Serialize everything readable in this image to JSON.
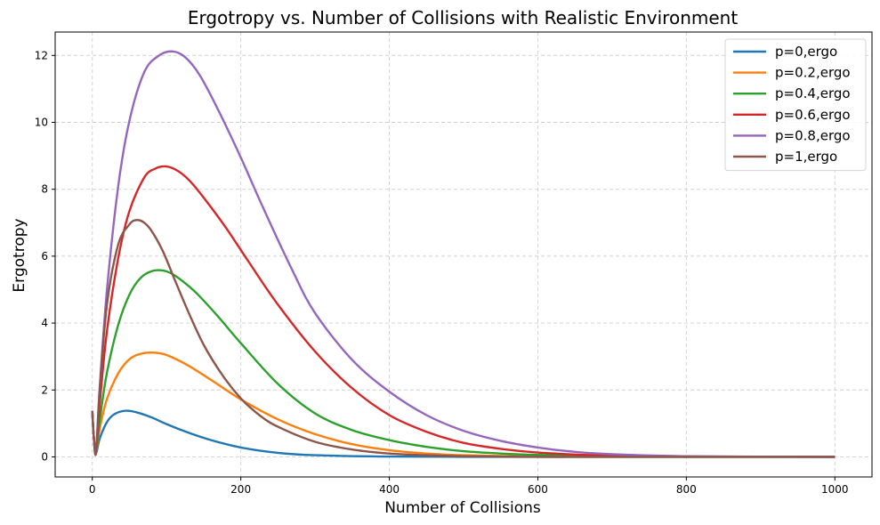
{
  "chart_data": {
    "type": "line",
    "title": "Ergotropy vs. Number of Collisions with Realistic Environment",
    "xlabel": "Number of Collisions",
    "ylabel": "Ergotropy",
    "xlim": [
      -50,
      1050
    ],
    "ylim": [
      -0.6,
      12.7
    ],
    "xticks": [
      0,
      200,
      400,
      600,
      800,
      1000
    ],
    "yticks": [
      0,
      2,
      4,
      6,
      8,
      10,
      12
    ],
    "grid": true,
    "legend_position": "top-right",
    "series": [
      {
        "name": "p=0,ergo",
        "color": "#1f77b4",
        "x": [
          0,
          2,
          5,
          10,
          20,
          30,
          45,
          60,
          80,
          100,
          130,
          160,
          200,
          250,
          300,
          400,
          500,
          600,
          800,
          1000
        ],
        "y": [
          1.38,
          0.6,
          0.12,
          0.55,
          1.05,
          1.28,
          1.38,
          1.33,
          1.18,
          0.98,
          0.72,
          0.5,
          0.28,
          0.12,
          0.05,
          0.01,
          0.0,
          0.0,
          0.0,
          0.0
        ]
      },
      {
        "name": "p=0.2,ergo",
        "color": "#ff7f0e",
        "x": [
          0,
          2,
          5,
          10,
          20,
          35,
          50,
          65,
          80,
          95,
          110,
          130,
          160,
          200,
          250,
          300,
          350,
          400,
          450,
          500,
          600,
          700,
          800,
          1000
        ],
        "y": [
          1.38,
          0.6,
          0.12,
          0.85,
          1.75,
          2.5,
          2.92,
          3.08,
          3.12,
          3.08,
          2.95,
          2.72,
          2.3,
          1.72,
          1.12,
          0.68,
          0.38,
          0.2,
          0.1,
          0.05,
          0.01,
          0.0,
          0.0,
          0.0
        ]
      },
      {
        "name": "p=0.4,ergo",
        "color": "#2ca02c",
        "x": [
          0,
          2,
          5,
          10,
          20,
          35,
          50,
          65,
          80,
          92,
          105,
          120,
          140,
          170,
          200,
          250,
          300,
          350,
          400,
          450,
          500,
          550,
          600,
          700,
          800,
          1000
        ],
        "y": [
          1.38,
          0.6,
          0.12,
          1.1,
          2.55,
          3.95,
          4.85,
          5.35,
          5.55,
          5.58,
          5.5,
          5.28,
          4.9,
          4.18,
          3.4,
          2.18,
          1.3,
          0.8,
          0.5,
          0.3,
          0.17,
          0.1,
          0.06,
          0.02,
          0.0,
          0.0
        ]
      },
      {
        "name": "p=0.6,ergo",
        "color": "#d62728",
        "x": [
          0,
          2,
          5,
          10,
          20,
          35,
          50,
          70,
          85,
          100,
          115,
          130,
          150,
          180,
          210,
          250,
          300,
          350,
          400,
          450,
          500,
          550,
          600,
          650,
          700,
          800,
          1000
        ],
        "y": [
          1.38,
          0.6,
          0.12,
          1.6,
          3.8,
          5.95,
          7.35,
          8.35,
          8.62,
          8.68,
          8.55,
          8.28,
          7.75,
          6.85,
          5.85,
          4.55,
          3.15,
          2.05,
          1.25,
          0.75,
          0.42,
          0.24,
          0.13,
          0.07,
          0.04,
          0.01,
          0.0
        ]
      },
      {
        "name": "p=0.8,ergo",
        "color": "#9467bd",
        "x": [
          0,
          2,
          5,
          10,
          20,
          35,
          50,
          70,
          90,
          108,
          125,
          145,
          170,
          200,
          230,
          270,
          300,
          350,
          400,
          450,
          500,
          550,
          600,
          650,
          700,
          800,
          1000
        ],
        "y": [
          1.38,
          0.6,
          0.12,
          2.1,
          5.05,
          8.1,
          10.05,
          11.5,
          12.0,
          12.12,
          11.95,
          11.4,
          10.35,
          8.95,
          7.45,
          5.55,
          4.3,
          2.9,
          1.95,
          1.25,
          0.78,
          0.48,
          0.28,
          0.15,
          0.08,
          0.02,
          0.0
        ]
      },
      {
        "name": "p=1,ergo",
        "color": "#8c564b",
        "x": [
          0,
          2,
          5,
          10,
          20,
          35,
          50,
          60,
          70,
          80,
          95,
          110,
          130,
          150,
          175,
          200,
          225,
          250,
          300,
          350,
          400,
          450,
          500,
          600,
          700,
          800,
          1000
        ],
        "y": [
          1.38,
          0.6,
          0.12,
          2.0,
          4.6,
          6.35,
          6.95,
          7.08,
          7.0,
          6.75,
          6.15,
          5.35,
          4.3,
          3.35,
          2.45,
          1.75,
          1.25,
          0.9,
          0.45,
          0.22,
          0.1,
          0.05,
          0.02,
          0.0,
          0.0,
          0.0,
          0.0
        ]
      }
    ]
  }
}
